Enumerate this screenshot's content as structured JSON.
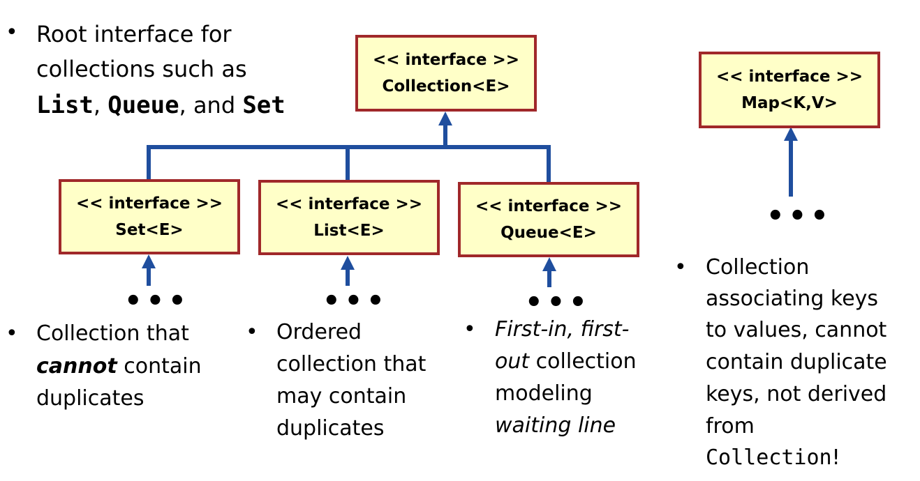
{
  "root_note": {
    "line1": "Root interface for",
    "line2": "collections such as",
    "code1": "List",
    "sep1": ",",
    "code2": "Queue",
    "sep2": ", and",
    "code3": "Set"
  },
  "boxes": {
    "collection": {
      "stereotype": "<< interface >>",
      "name": "Collection<E>"
    },
    "map": {
      "stereotype": "<< interface >>",
      "name": "Map<K,V>"
    },
    "set": {
      "stereotype": "<< interface >>",
      "name": "Set<E>"
    },
    "list": {
      "stereotype": "<< interface >>",
      "name": "List<E>"
    },
    "queue": {
      "stereotype": "<< interface >>",
      "name": "Queue<E>"
    }
  },
  "ellipsis": "•••",
  "bullet": "•",
  "descriptions": {
    "set": {
      "l1": "Collection that",
      "l2_em": "cannot",
      "l2": " contain",
      "l3": "duplicates"
    },
    "list": {
      "l1": "Ordered",
      "l2": "collection that",
      "l3": "may contain",
      "l4": "duplicates"
    },
    "queue": {
      "l1_em": "First-in, first-",
      "l2_em": "out",
      "l2": " collection",
      "l3": "modeling",
      "l4_em": "waiting line"
    },
    "map": {
      "l1": "Collection",
      "l2": "associating keys",
      "l3": "to values, cannot",
      "l4": "contain duplicate",
      "l5": "keys, not derived",
      "l6": "from",
      "l7_code": "Collection",
      "l7": "!"
    }
  },
  "colors": {
    "box_fill": "#ffffc8",
    "box_border": "#a0282a",
    "arrow": "#1f4e9e"
  }
}
